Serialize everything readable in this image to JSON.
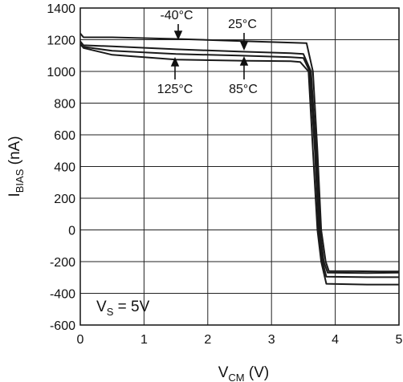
{
  "chart_data": {
    "type": "line",
    "xlabel": {
      "main": "V",
      "sub": "CM",
      "unit": " (V)"
    },
    "ylabel": {
      "main": "I",
      "sub": "BIAS",
      "unit": " (nA)"
    },
    "xlim": [
      0,
      5
    ],
    "ylim": [
      -600,
      1400
    ],
    "x_ticks": [
      0,
      1,
      2,
      3,
      4,
      5
    ],
    "y_ticks": [
      -600,
      -400,
      -200,
      0,
      200,
      400,
      600,
      800,
      1000,
      1200,
      1400
    ],
    "grid": true,
    "condition_note": {
      "main": "V",
      "sub": "S",
      "rest": " = 5V"
    },
    "series": [
      {
        "name": "-40°C",
        "points": [
          [
            0,
            1240
          ],
          [
            0.05,
            1215
          ],
          [
            0.5,
            1215
          ],
          [
            1.5,
            1205
          ],
          [
            2.5,
            1192
          ],
          [
            3.3,
            1182
          ],
          [
            3.55,
            1178
          ],
          [
            3.65,
            1000
          ],
          [
            3.72,
            500
          ],
          [
            3.78,
            0
          ],
          [
            3.85,
            -200
          ],
          [
            3.9,
            -260
          ],
          [
            4.3,
            -260
          ],
          [
            4.7,
            -262
          ],
          [
            5,
            -262
          ]
        ]
      },
      {
        "name": "25°C",
        "points": [
          [
            0,
            1190
          ],
          [
            0.05,
            1165
          ],
          [
            0.5,
            1158
          ],
          [
            1.5,
            1140
          ],
          [
            2.5,
            1125
          ],
          [
            3.3,
            1115
          ],
          [
            3.5,
            1110
          ],
          [
            3.62,
            1000
          ],
          [
            3.7,
            500
          ],
          [
            3.76,
            0
          ],
          [
            3.82,
            -200
          ],
          [
            3.88,
            -270
          ],
          [
            4.5,
            -272
          ],
          [
            5,
            -270
          ]
        ]
      },
      {
        "name": "85°C",
        "points": [
          [
            0,
            1165
          ],
          [
            0.05,
            1155
          ],
          [
            0.5,
            1130
          ],
          [
            1.5,
            1110
          ],
          [
            2.5,
            1100
          ],
          [
            3.3,
            1090
          ],
          [
            3.5,
            1085
          ],
          [
            3.6,
            1000
          ],
          [
            3.68,
            500
          ],
          [
            3.74,
            0
          ],
          [
            3.8,
            -200
          ],
          [
            3.86,
            -295
          ],
          [
            4.5,
            -298
          ],
          [
            5,
            -298
          ]
        ]
      },
      {
        "name": "125°C",
        "points": [
          [
            0,
            1175
          ],
          [
            0.05,
            1148
          ],
          [
            0.5,
            1105
          ],
          [
            1.5,
            1075
          ],
          [
            2.5,
            1068
          ],
          [
            3.3,
            1065
          ],
          [
            3.45,
            1060
          ],
          [
            3.58,
            1000
          ],
          [
            3.65,
            500
          ],
          [
            3.72,
            0
          ],
          [
            3.78,
            -200
          ],
          [
            3.86,
            -340
          ],
          [
            4.5,
            -345
          ],
          [
            5,
            -345
          ]
        ]
      }
    ],
    "annotations": [
      {
        "text": "-40°C",
        "target_series": "-40°C"
      },
      {
        "text": "25°C",
        "target_series": "25°C"
      },
      {
        "text": "125°C",
        "target_series": "125°C"
      },
      {
        "text": "85°C",
        "target_series": "85°C"
      }
    ]
  }
}
